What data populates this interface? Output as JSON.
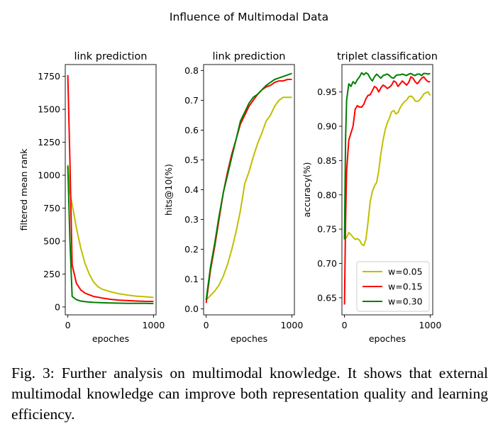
{
  "figure": {
    "suptitle": "Influence of Multimodal Data",
    "caption_label": "Fig. 3:",
    "caption_text": "Further analysis on multimodal knowledge. It shows that external multimodal knowledge can improve both representation quality and learning efficiency."
  },
  "colors": {
    "w=0.05": "#bfbf00",
    "w=0.15": "#ff0000",
    "w=0.30": "#008000"
  },
  "chart_data": [
    {
      "type": "line",
      "title": "link prediction",
      "xlabel": "epoches",
      "ylabel": "filtered mean rank",
      "xlim": [
        -30,
        1030
      ],
      "ylim": [
        -60,
        1840
      ],
      "xticks": [
        0,
        1000
      ],
      "yticks": [
        0,
        250,
        500,
        750,
        1000,
        1250,
        1500,
        1750
      ],
      "series": [
        {
          "name": "w=0.05",
          "x": [
            0,
            25,
            50,
            100,
            150,
            200,
            250,
            300,
            350,
            400,
            500,
            600,
            700,
            800,
            900,
            1000
          ],
          "values": [
            1080,
            870,
            780,
            600,
            450,
            330,
            250,
            190,
            155,
            135,
            115,
            100,
            90,
            82,
            78,
            72
          ]
        },
        {
          "name": "w=0.15",
          "x": [
            0,
            25,
            50,
            100,
            150,
            200,
            300,
            400,
            500,
            600,
            700,
            800,
            900,
            1000
          ],
          "values": [
            1760,
            1100,
            320,
            180,
            130,
            105,
            80,
            68,
            58,
            52,
            48,
            45,
            43,
            42
          ]
        },
        {
          "name": "w=0.30",
          "x": [
            0,
            25,
            50,
            100,
            150,
            200,
            300,
            400,
            500,
            600,
            700,
            800,
            900,
            1000
          ],
          "values": [
            1070,
            500,
            80,
            55,
            45,
            40,
            35,
            32,
            30,
            29,
            28,
            27,
            27,
            26
          ]
        }
      ]
    },
    {
      "type": "line",
      "title": "link prediction",
      "xlabel": "epoches",
      "ylabel": "hits@10(%)",
      "xlim": [
        -30,
        1030
      ],
      "ylim": [
        -0.02,
        0.82
      ],
      "xticks": [
        0,
        1000
      ],
      "yticks": [
        0.0,
        0.1,
        0.2,
        0.3,
        0.4,
        0.5,
        0.6,
        0.7,
        0.8
      ],
      "series": [
        {
          "name": "w=0.05",
          "x": [
            0,
            50,
            100,
            150,
            200,
            250,
            300,
            350,
            400,
            450,
            500,
            550,
            600,
            650,
            700,
            750,
            800,
            850,
            900,
            950,
            1000
          ],
          "values": [
            0.03,
            0.045,
            0.06,
            0.08,
            0.11,
            0.15,
            0.2,
            0.26,
            0.33,
            0.42,
            0.46,
            0.51,
            0.555,
            0.59,
            0.63,
            0.65,
            0.68,
            0.7,
            0.71,
            0.71,
            0.71
          ]
        },
        {
          "name": "w=0.15",
          "x": [
            0,
            50,
            100,
            150,
            200,
            250,
            300,
            350,
            400,
            450,
            500,
            550,
            600,
            650,
            700,
            750,
            800,
            850,
            900,
            950,
            1000
          ],
          "values": [
            0.02,
            0.13,
            0.21,
            0.3,
            0.39,
            0.46,
            0.52,
            0.57,
            0.62,
            0.65,
            0.68,
            0.7,
            0.72,
            0.735,
            0.745,
            0.75,
            0.76,
            0.765,
            0.765,
            0.77,
            0.77
          ]
        },
        {
          "name": "w=0.30",
          "x": [
            0,
            50,
            100,
            150,
            200,
            250,
            300,
            350,
            400,
            450,
            500,
            550,
            600,
            650,
            700,
            750,
            800,
            850,
            900,
            950,
            1000
          ],
          "values": [
            0.03,
            0.14,
            0.22,
            0.31,
            0.39,
            0.45,
            0.51,
            0.57,
            0.63,
            0.66,
            0.69,
            0.71,
            0.72,
            0.735,
            0.75,
            0.76,
            0.77,
            0.775,
            0.78,
            0.785,
            0.79
          ]
        }
      ]
    },
    {
      "type": "line",
      "title": "triplet classification",
      "xlabel": "epoches",
      "ylabel": "accuracy(%)",
      "xlim": [
        -30,
        1030
      ],
      "ylim": [
        0.625,
        0.99
      ],
      "xticks": [
        0,
        1000
      ],
      "yticks": [
        0.65,
        0.7,
        0.75,
        0.8,
        0.85,
        0.9,
        0.95
      ],
      "legend": {
        "position": "lower-right",
        "entries": [
          "w=0.05",
          "w=0.15",
          "w=0.30"
        ]
      },
      "series": [
        {
          "name": "w=0.05",
          "x": [
            0,
            25,
            50,
            75,
            100,
            125,
            150,
            175,
            200,
            225,
            250,
            275,
            300,
            325,
            350,
            375,
            400,
            425,
            450,
            475,
            500,
            525,
            550,
            575,
            600,
            625,
            650,
            675,
            700,
            725,
            750,
            775,
            800,
            825,
            850,
            875,
            900,
            925,
            950,
            975,
            1000
          ],
          "values": [
            0.735,
            0.738,
            0.745,
            0.742,
            0.738,
            0.735,
            0.736,
            0.734,
            0.728,
            0.726,
            0.735,
            0.76,
            0.79,
            0.805,
            0.813,
            0.818,
            0.835,
            0.86,
            0.88,
            0.895,
            0.905,
            0.912,
            0.921,
            0.923,
            0.918,
            0.92,
            0.927,
            0.932,
            0.936,
            0.938,
            0.943,
            0.944,
            0.942,
            0.937,
            0.936,
            0.938,
            0.942,
            0.947,
            0.949,
            0.95,
            0.945
          ]
        },
        {
          "name": "w=0.15",
          "x": [
            0,
            12,
            25,
            50,
            75,
            100,
            125,
            150,
            175,
            200,
            225,
            250,
            275,
            300,
            325,
            350,
            375,
            400,
            425,
            450,
            475,
            500,
            525,
            550,
            575,
            600,
            625,
            650,
            675,
            700,
            725,
            750,
            775,
            800,
            825,
            850,
            875,
            900,
            925,
            950,
            975,
            1000
          ],
          "values": [
            0.64,
            0.76,
            0.835,
            0.88,
            0.89,
            0.9,
            0.925,
            0.93,
            0.928,
            0.928,
            0.932,
            0.94,
            0.945,
            0.946,
            0.952,
            0.958,
            0.956,
            0.95,
            0.956,
            0.96,
            0.958,
            0.955,
            0.957,
            0.96,
            0.966,
            0.964,
            0.958,
            0.962,
            0.966,
            0.963,
            0.96,
            0.964,
            0.972,
            0.97,
            0.965,
            0.962,
            0.966,
            0.97,
            0.972,
            0.968,
            0.965,
            0.965
          ]
        },
        {
          "name": "w=0.30",
          "x": [
            0,
            12,
            25,
            50,
            75,
            100,
            125,
            150,
            175,
            200,
            225,
            250,
            275,
            300,
            325,
            350,
            375,
            400,
            425,
            450,
            475,
            500,
            525,
            550,
            575,
            600,
            625,
            650,
            675,
            700,
            725,
            750,
            775,
            800,
            825,
            850,
            875,
            900,
            925,
            950,
            975,
            1000
          ],
          "values": [
            0.735,
            0.88,
            0.938,
            0.962,
            0.958,
            0.965,
            0.962,
            0.968,
            0.972,
            0.978,
            0.975,
            0.978,
            0.976,
            0.97,
            0.966,
            0.972,
            0.976,
            0.973,
            0.97,
            0.974,
            0.975,
            0.976,
            0.974,
            0.971,
            0.97,
            0.974,
            0.975,
            0.975,
            0.976,
            0.975,
            0.974,
            0.976,
            0.977,
            0.975,
            0.974,
            0.976,
            0.976,
            0.974,
            0.977,
            0.977,
            0.976,
            0.977
          ]
        }
      ]
    }
  ]
}
